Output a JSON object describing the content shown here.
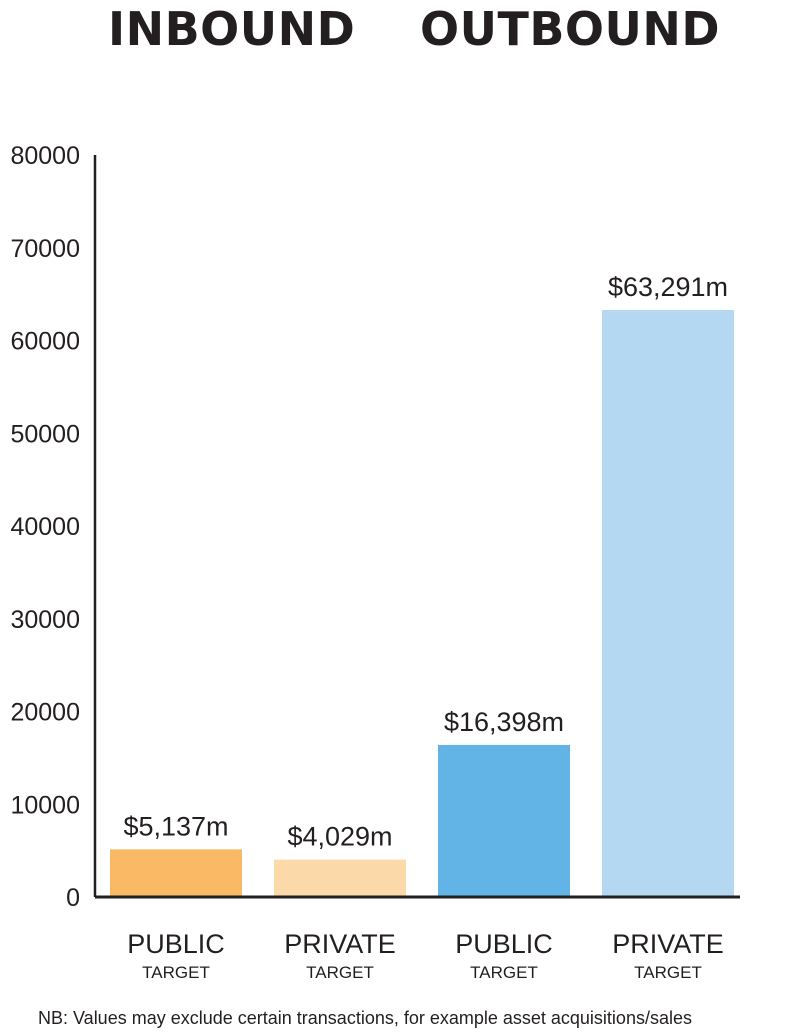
{
  "headers": {
    "inbound": "INBOUND",
    "outbound": "OUTBOUND"
  },
  "chart_data": {
    "type": "bar",
    "categories": [
      "PUBLIC TARGET",
      "PRIVATE TARGET",
      "PUBLIC TARGET",
      "PRIVATE TARGET"
    ],
    "category_main": [
      "PUBLIC",
      "PRIVATE",
      "PUBLIC",
      "PRIVATE"
    ],
    "category_sub": [
      "TARGET",
      "TARGET",
      "TARGET",
      "TARGET"
    ],
    "groups": [
      "INBOUND",
      "INBOUND",
      "OUTBOUND",
      "OUTBOUND"
    ],
    "values": [
      5137,
      4029,
      16398,
      63291
    ],
    "data_labels": [
      "$5,137m",
      "$4,029m",
      "$16,398m",
      "$63,291m"
    ],
    "colors": [
      "#f9b965",
      "#fcd9a8",
      "#63b4e6",
      "#b4d7f2"
    ],
    "ylim": [
      0,
      80000
    ],
    "yticks": [
      0,
      10000,
      20000,
      30000,
      40000,
      50000,
      60000,
      70000,
      80000
    ],
    "grid": false,
    "title": "",
    "xlabel": "",
    "ylabel": ""
  },
  "footnote": "NB: Values may exclude certain transactions, for example asset acquisitions/sales"
}
